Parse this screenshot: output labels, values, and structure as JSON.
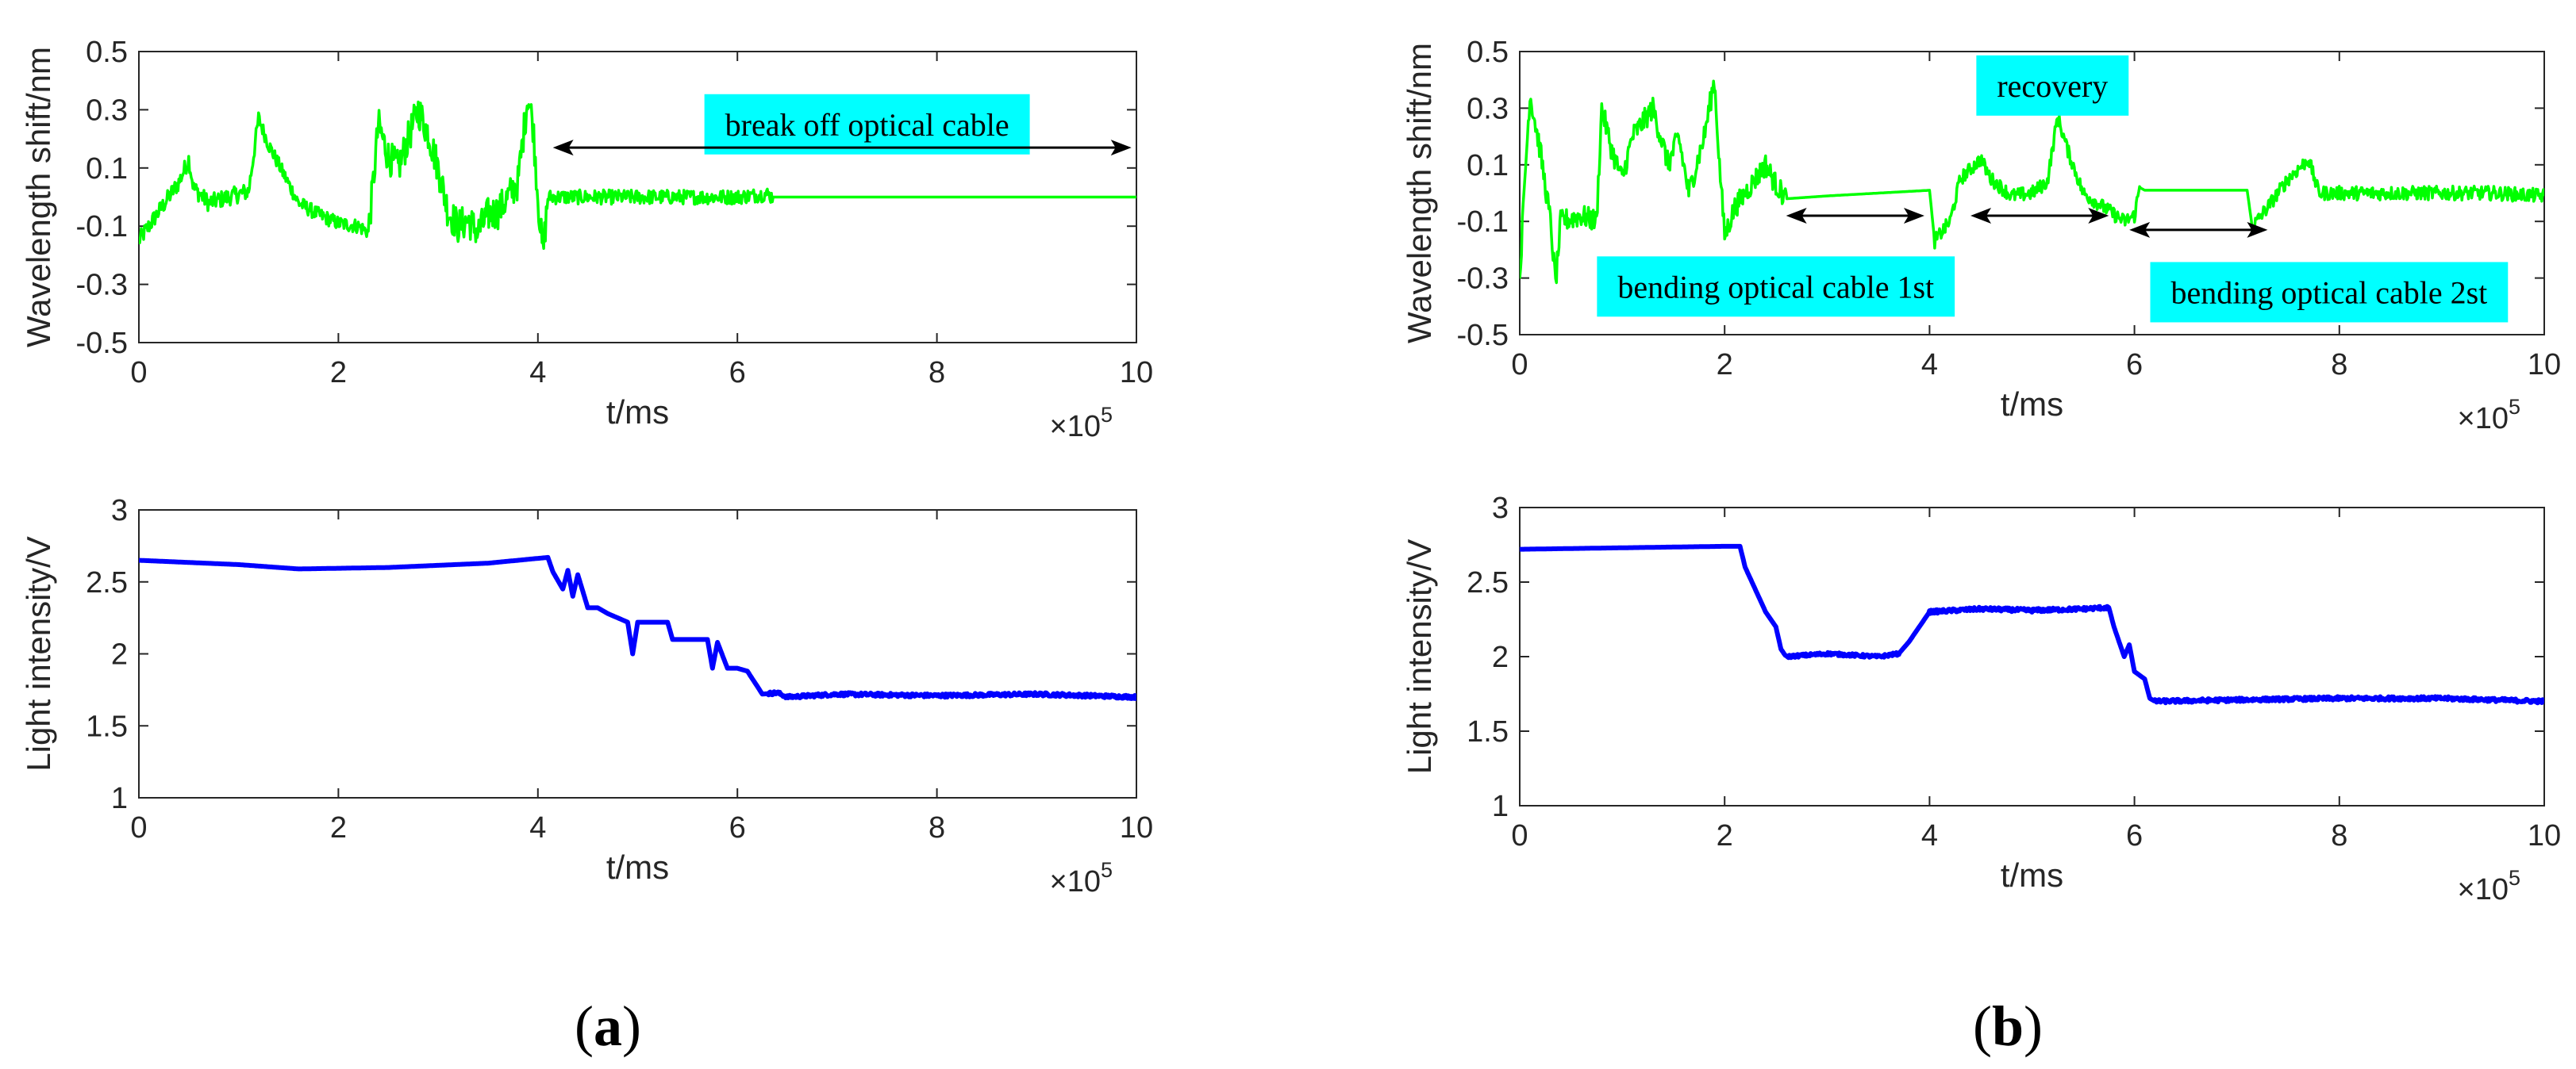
{
  "colors": {
    "wavelength_line": "#00ff00",
    "intensity_line": "#0000ff",
    "annotation_box": "#00ffff",
    "axis": "#262626",
    "arrow": "#000000"
  },
  "panels": [
    {
      "label_open": "(",
      "label": "a",
      "label_close": ")"
    },
    {
      "label_open": "(",
      "label": "b",
      "label_close": ")"
    }
  ],
  "chart_data": [
    {
      "id": "a-top",
      "type": "line",
      "panel": "a",
      "ylabel": "Wavelength shift/nm",
      "xlabel": "t/ms",
      "xlim": [
        0,
        10
      ],
      "ylim": [
        -0.5,
        0.5
      ],
      "x_multiplier": {
        "base": "×10",
        "exponent": "5"
      },
      "xticks": [
        0,
        2,
        4,
        6,
        8,
        10
      ],
      "xtick_labels": [
        "0",
        "2",
        "4",
        "6",
        "8",
        "10"
      ],
      "yticks": [
        -0.5,
        -0.3,
        -0.1,
        0.1,
        0.3,
        0.5
      ],
      "ytick_labels": [
        "-0.5",
        "-0.3",
        "-0.1",
        "0.1",
        "0.3",
        "0.5"
      ],
      "series": [
        {
          "name": "wavelength shift",
          "color": "#00ff00",
          "points": [
            [
              0,
              -0.15
            ],
            [
              0.2,
              -0.05
            ],
            [
              0.4,
              0.05
            ],
            [
              0.5,
              0.13
            ],
            [
              0.55,
              0.03
            ],
            [
              0.7,
              -0.02
            ],
            [
              0.9,
              0.0
            ],
            [
              1.1,
              0.02
            ],
            [
              1.2,
              0.27
            ],
            [
              1.3,
              0.18
            ],
            [
              1.45,
              0.08
            ],
            [
              1.6,
              -0.02
            ],
            [
              1.8,
              -0.06
            ],
            [
              2.0,
              -0.09
            ],
            [
              2.2,
              -0.1
            ],
            [
              2.3,
              -0.12
            ],
            [
              2.35,
              0.05
            ],
            [
              2.4,
              0.25
            ],
            [
              2.5,
              0.14
            ],
            [
              2.6,
              0.1
            ],
            [
              2.7,
              0.2
            ],
            [
              2.8,
              0.3
            ],
            [
              2.9,
              0.22
            ],
            [
              3.0,
              0.1
            ],
            [
              3.1,
              -0.05
            ],
            [
              3.2,
              -0.1
            ],
            [
              3.3,
              -0.08
            ],
            [
              3.4,
              -0.12
            ],
            [
              3.5,
              -0.06
            ],
            [
              3.6,
              -0.05
            ],
            [
              3.7,
              0.0
            ],
            [
              3.8,
              0.05
            ],
            [
              3.9,
              0.35
            ],
            [
              3.95,
              0.25
            ],
            [
              4.0,
              0.0
            ],
            [
              4.05,
              -0.2
            ],
            [
              4.1,
              0.0
            ],
            [
              4.3,
              0.0
            ],
            [
              5.0,
              0.0
            ],
            [
              6.0,
              0.0
            ],
            [
              6.3,
              0.01
            ],
            [
              6.35,
              0.0
            ],
            [
              10,
              0.0
            ]
          ],
          "noise": [
            [
              0,
              1.2,
              0.03
            ],
            [
              1.2,
              2.3,
              0.025
            ],
            [
              2.3,
              4.1,
              0.06
            ],
            [
              4.1,
              6.35,
              0.025
            ]
          ]
        }
      ],
      "annotations": [
        {
          "type": "label",
          "text": "break off optical cable",
          "x": 7.3,
          "y": 0.25
        },
        {
          "type": "double_arrow",
          "x_from": 4.15,
          "x_to": 9.95,
          "y": 0.17
        }
      ]
    },
    {
      "id": "a-bottom",
      "type": "line",
      "panel": "a",
      "ylabel": "Light intensity/V",
      "xlabel": "t/ms",
      "xlim": [
        0,
        10
      ],
      "ylim": [
        1,
        3
      ],
      "x_multiplier": {
        "base": "×10",
        "exponent": "5"
      },
      "xticks": [
        0,
        2,
        4,
        6,
        8,
        10
      ],
      "xtick_labels": [
        "0",
        "2",
        "4",
        "6",
        "8",
        "10"
      ],
      "yticks": [
        1,
        1.5,
        2,
        2.5,
        3
      ],
      "ytick_labels": [
        "1",
        "1.5",
        "2",
        "2.5",
        "3"
      ],
      "series": [
        {
          "name": "light intensity",
          "color": "#0000ff",
          "points": [
            [
              0,
              2.65
            ],
            [
              1.0,
              2.62
            ],
            [
              1.6,
              2.59
            ],
            [
              2.5,
              2.6
            ],
            [
              3.5,
              2.63
            ],
            [
              4.1,
              2.67
            ],
            [
              4.15,
              2.57
            ],
            [
              4.25,
              2.45
            ],
            [
              4.3,
              2.58
            ],
            [
              4.35,
              2.4
            ],
            [
              4.4,
              2.55
            ],
            [
              4.5,
              2.32
            ],
            [
              4.6,
              2.32
            ],
            [
              4.7,
              2.28
            ],
            [
              4.9,
              2.22
            ],
            [
              4.95,
              2.0
            ],
            [
              5.0,
              2.22
            ],
            [
              5.2,
              2.22
            ],
            [
              5.3,
              2.22
            ],
            [
              5.35,
              2.1
            ],
            [
              5.7,
              2.1
            ],
            [
              5.75,
              1.9
            ],
            [
              5.8,
              2.08
            ],
            [
              5.9,
              1.9
            ],
            [
              6.0,
              1.9
            ],
            [
              6.1,
              1.88
            ],
            [
              6.25,
              1.72
            ],
            [
              6.4,
              1.73
            ],
            [
              6.5,
              1.7
            ],
            [
              7.0,
              1.72
            ],
            [
              8.0,
              1.71
            ],
            [
              9.0,
              1.72
            ],
            [
              10,
              1.7
            ]
          ],
          "noise": [
            [
              6.3,
              10,
              0.012
            ]
          ]
        }
      ]
    },
    {
      "id": "b-top",
      "type": "line",
      "panel": "b",
      "ylabel": "Wavelength shift/nm",
      "xlabel": "t/ms",
      "xlim": [
        0,
        10
      ],
      "ylim": [
        -0.5,
        0.5
      ],
      "x_multiplier": {
        "base": "×10",
        "exponent": "5"
      },
      "xticks": [
        0,
        2,
        4,
        6,
        8,
        10
      ],
      "xtick_labels": [
        "0",
        "2",
        "4",
        "6",
        "8",
        "10"
      ],
      "yticks": [
        -0.5,
        -0.3,
        -0.1,
        0.1,
        0.3,
        0.5
      ],
      "ytick_labels": [
        "-0.5",
        "-0.3",
        "-0.1",
        "0.1",
        "0.3",
        "0.5"
      ],
      "series": [
        {
          "name": "wavelength shift",
          "color": "#00ff00",
          "points": [
            [
              0,
              -0.3
            ],
            [
              0.05,
              0.05
            ],
            [
              0.1,
              0.35
            ],
            [
              0.2,
              0.15
            ],
            [
              0.3,
              -0.1
            ],
            [
              0.35,
              -0.32
            ],
            [
              0.4,
              -0.1
            ],
            [
              0.6,
              -0.08
            ],
            [
              0.75,
              -0.1
            ],
            [
              0.8,
              0.3
            ],
            [
              0.9,
              0.15
            ],
            [
              1.0,
              0.05
            ],
            [
              1.1,
              0.2
            ],
            [
              1.3,
              0.3
            ],
            [
              1.45,
              0.1
            ],
            [
              1.55,
              0.2
            ],
            [
              1.65,
              0.0
            ],
            [
              1.8,
              0.2
            ],
            [
              1.9,
              0.4
            ],
            [
              1.95,
              0.1
            ],
            [
              2.0,
              -0.15
            ],
            [
              2.1,
              -0.05
            ],
            [
              2.2,
              0.0
            ],
            [
              2.3,
              0.05
            ],
            [
              2.4,
              0.1
            ],
            [
              2.5,
              0.03
            ],
            [
              2.6,
              -0.02
            ],
            [
              3.0,
              -0.01
            ],
            [
              3.5,
              0.0
            ],
            [
              4.0,
              0.01
            ],
            [
              4.05,
              -0.17
            ],
            [
              4.2,
              -0.1
            ],
            [
              4.3,
              0.05
            ],
            [
              4.5,
              0.12
            ],
            [
              4.6,
              0.05
            ],
            [
              4.8,
              -0.01
            ],
            [
              5.0,
              0.0
            ],
            [
              5.15,
              0.04
            ],
            [
              5.25,
              0.27
            ],
            [
              5.35,
              0.15
            ],
            [
              5.5,
              0.0
            ],
            [
              5.7,
              -0.05
            ],
            [
              5.9,
              -0.1
            ],
            [
              6.0,
              -0.08
            ],
            [
              6.05,
              0.02
            ],
            [
              6.1,
              0.01
            ],
            [
              7.0,
              0.01
            ],
            [
              7.1,
              0.01
            ],
            [
              7.15,
              -0.12
            ],
            [
              7.3,
              -0.05
            ],
            [
              7.5,
              0.05
            ],
            [
              7.7,
              0.12
            ],
            [
              7.8,
              0.0
            ],
            [
              8.5,
              0.0
            ],
            [
              9.5,
              0.0
            ],
            [
              10,
              -0.01
            ]
          ],
          "noise": [
            [
              0,
              2.6,
              0.04
            ],
            [
              4.05,
              6.05,
              0.025
            ],
            [
              7.15,
              10,
              0.025
            ]
          ]
        }
      ],
      "annotations": [
        {
          "type": "label",
          "text": "recovery",
          "x": 5.2,
          "y": 0.38
        },
        {
          "type": "label",
          "text": "bending optical cable 1st",
          "x": 2.5,
          "y": -0.33
        },
        {
          "type": "label",
          "text": "bending optical cable 2st",
          "x": 7.9,
          "y": -0.35
        },
        {
          "type": "double_arrow",
          "x_from": 2.6,
          "x_to": 3.95,
          "y": -0.08
        },
        {
          "type": "double_arrow",
          "x_from": 4.4,
          "x_to": 5.75,
          "y": -0.08
        },
        {
          "type": "double_arrow",
          "x_from": 5.95,
          "x_to": 7.3,
          "y": -0.13
        }
      ]
    },
    {
      "id": "b-bottom",
      "type": "line",
      "panel": "b",
      "ylabel": "Light intensity/V",
      "xlabel": "t/ms",
      "xlim": [
        0,
        10
      ],
      "ylim": [
        1,
        3
      ],
      "x_multiplier": {
        "base": "×10",
        "exponent": "5"
      },
      "xticks": [
        0,
        2,
        4,
        6,
        8,
        10
      ],
      "xtick_labels": [
        "0",
        "2",
        "4",
        "6",
        "8",
        "10"
      ],
      "yticks": [
        1,
        1.5,
        2,
        2.5,
        3
      ],
      "ytick_labels": [
        "1",
        "1.5",
        "2",
        "2.5",
        "3"
      ],
      "series": [
        {
          "name": "light intensity",
          "color": "#0000ff",
          "points": [
            [
              0,
              2.72
            ],
            [
              1.0,
              2.73
            ],
            [
              2.0,
              2.74
            ],
            [
              2.15,
              2.74
            ],
            [
              2.2,
              2.6
            ],
            [
              2.3,
              2.45
            ],
            [
              2.4,
              2.3
            ],
            [
              2.5,
              2.2
            ],
            [
              2.55,
              2.05
            ],
            [
              2.6,
              2.0
            ],
            [
              3.0,
              2.02
            ],
            [
              3.5,
              2.0
            ],
            [
              3.7,
              2.02
            ],
            [
              3.8,
              2.1
            ],
            [
              3.9,
              2.2
            ],
            [
              4.0,
              2.3
            ],
            [
              4.5,
              2.32
            ],
            [
              5.0,
              2.31
            ],
            [
              5.5,
              2.32
            ],
            [
              5.75,
              2.33
            ],
            [
              5.8,
              2.2
            ],
            [
              5.85,
              2.1
            ],
            [
              5.9,
              2.0
            ],
            [
              5.95,
              2.08
            ],
            [
              6.0,
              1.9
            ],
            [
              6.1,
              1.85
            ],
            [
              6.15,
              1.72
            ],
            [
              6.2,
              1.7
            ],
            [
              7.0,
              1.71
            ],
            [
              8.0,
              1.72
            ],
            [
              9.0,
              1.72
            ],
            [
              10,
              1.7
            ]
          ],
          "noise": [
            [
              2.6,
              3.7,
              0.01
            ],
            [
              4.0,
              5.75,
              0.012
            ],
            [
              6.2,
              10,
              0.012
            ]
          ]
        }
      ]
    }
  ]
}
